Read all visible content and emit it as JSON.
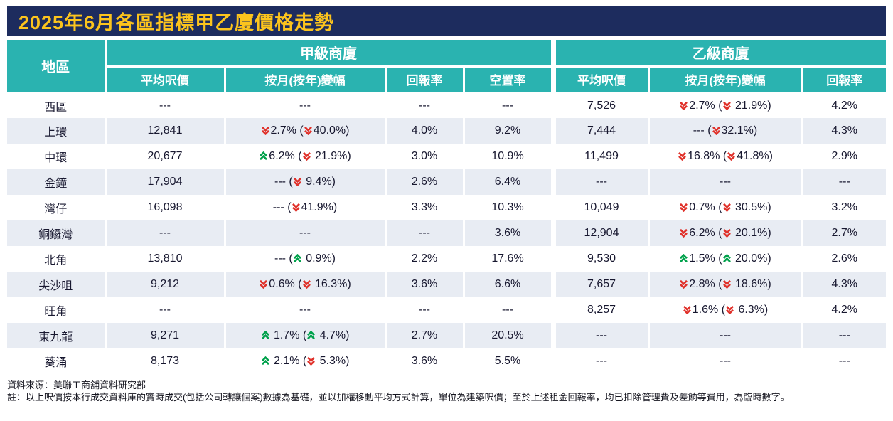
{
  "title": "2025年6月各區指標甲乙廈價格走勢",
  "colors": {
    "banner_bg": "#1D2C5E",
    "title_color": "#FCC41D",
    "teal": "#2AB3B0",
    "stripe": "#E8ECF3",
    "down_red": "#E0312A",
    "up_green": "#00A14B"
  },
  "chart_data": {
    "type": "table",
    "title": "2025年6月各區指標甲乙廈價格走勢",
    "district_header": "地區",
    "groups": [
      {
        "label": "甲級商廈",
        "columns": [
          "平均呎價",
          "按月(按年)變幅",
          "回報率",
          "空置率"
        ]
      },
      {
        "label": "乙級商廈",
        "columns": [
          "平均呎價",
          "按月(按年)變幅",
          "回報率"
        ]
      }
    ],
    "legend": {
      "down_icon": "double-down-arrow-icon",
      "up_icon": "double-up-arrow-icon"
    },
    "rows": [
      {
        "district": "西區",
        "a": {
          "price": "---",
          "change": null,
          "ret": "---",
          "vac": "---"
        },
        "b": {
          "price": "7,526",
          "change": {
            "m": {
              "dir": "down",
              "val": "2.7%"
            },
            "y": {
              "dir": "down",
              "val": " 21.9%"
            }
          },
          "ret": "4.2%"
        }
      },
      {
        "district": "上環",
        "a": {
          "price": "12,841",
          "change": {
            "m": {
              "dir": "down",
              "val": "2.7%"
            },
            "y": {
              "dir": "down",
              "val": "40.0%"
            }
          },
          "ret": "4.0%",
          "vac": "9.2%"
        },
        "b": {
          "price": "7,444",
          "change": {
            "m": {
              "dir": null,
              "val": "---"
            },
            "y": {
              "dir": "down",
              "val": "32.1%"
            }
          },
          "ret": "4.3%"
        }
      },
      {
        "district": "中環",
        "a": {
          "price": "20,677",
          "change": {
            "m": {
              "dir": "up",
              "val": "6.2%"
            },
            "y": {
              "dir": "down",
              "val": " 21.9%"
            }
          },
          "ret": "3.0%",
          "vac": "10.9%"
        },
        "b": {
          "price": "11,499",
          "change": {
            "m": {
              "dir": "down",
              "val": "16.8%"
            },
            "y": {
              "dir": "down",
              "val": "41.8%"
            }
          },
          "ret": "2.9%"
        }
      },
      {
        "district": "金鐘",
        "a": {
          "price": "17,904",
          "change": {
            "m": {
              "dir": null,
              "val": "---"
            },
            "y": {
              "dir": "down",
              "val": " 9.4%"
            }
          },
          "ret": "2.6%",
          "vac": "6.4%"
        },
        "b": {
          "price": "---",
          "change": null,
          "ret": "---"
        }
      },
      {
        "district": "灣仔",
        "a": {
          "price": "16,098",
          "change": {
            "m": {
              "dir": null,
              "val": "---"
            },
            "y": {
              "dir": "down",
              "val": "41.9%"
            }
          },
          "ret": "3.3%",
          "vac": "10.3%"
        },
        "b": {
          "price": "10,049",
          "change": {
            "m": {
              "dir": "down",
              "val": "0.7%"
            },
            "y": {
              "dir": "down",
              "val": " 30.5%"
            }
          },
          "ret": "3.2%"
        }
      },
      {
        "district": "銅鑼灣",
        "a": {
          "price": "---",
          "change": null,
          "ret": "---",
          "vac": "3.6%"
        },
        "b": {
          "price": "12,904",
          "change": {
            "m": {
              "dir": "down",
              "val": "6.2%"
            },
            "y": {
              "dir": "down",
              "val": " 20.1%"
            }
          },
          "ret": "2.7%"
        }
      },
      {
        "district": "北角",
        "a": {
          "price": "13,810",
          "change": {
            "m": {
              "dir": null,
              "val": "---"
            },
            "y": {
              "dir": "up",
              "val": " 0.9%"
            }
          },
          "ret": "2.2%",
          "vac": "17.6%"
        },
        "b": {
          "price": "9,530",
          "change": {
            "m": {
              "dir": "up",
              "val": "1.5%"
            },
            "y": {
              "dir": "up",
              "val": " 20.0%"
            }
          },
          "ret": "2.6%"
        }
      },
      {
        "district": "尖沙咀",
        "a": {
          "price": "9,212",
          "change": {
            "m": {
              "dir": "down",
              "val": "0.6%"
            },
            "y": {
              "dir": "down",
              "val": " 16.3%"
            }
          },
          "ret": "3.6%",
          "vac": "6.6%"
        },
        "b": {
          "price": "7,657",
          "change": {
            "m": {
              "dir": "down",
              "val": "2.8%"
            },
            "y": {
              "dir": "down",
              "val": " 18.6%"
            }
          },
          "ret": "4.3%"
        }
      },
      {
        "district": "旺角",
        "a": {
          "price": "---",
          "change": null,
          "ret": "---",
          "vac": "---"
        },
        "b": {
          "price": "8,257",
          "change": {
            "m": {
              "dir": "down",
              "val": "1.6%"
            },
            "y": {
              "dir": "down",
              "val": " 6.3%"
            }
          },
          "ret": "4.2%"
        }
      },
      {
        "district": "東九龍",
        "a": {
          "price": "9,271",
          "change": {
            "m": {
              "dir": "up",
              "val": " 1.7%"
            },
            "y": {
              "dir": "up",
              "val": " 4.7%"
            }
          },
          "ret": "2.7%",
          "vac": "20.5%"
        },
        "b": {
          "price": "---",
          "change": null,
          "ret": "---"
        }
      },
      {
        "district": "葵涌",
        "a": {
          "price": "8,173",
          "change": {
            "m": {
              "dir": "up",
              "val": " 2.1%"
            },
            "y": {
              "dir": "down",
              "val": " 5.3%"
            }
          },
          "ret": "3.6%",
          "vac": "5.5%"
        },
        "b": {
          "price": "---",
          "change": null,
          "ret": "---"
        }
      }
    ]
  },
  "footer": {
    "source": "資料來源：美聯工商舖資料研究部",
    "note": "註：以上呎價按本行成交資料庫的實時成交(包括公司轉讓個案)數據為基礎，並以加權移動平均方式計算，單位為建築呎價；至於上述租金回報率，均已扣除管理費及差餉等費用，為臨時數字。"
  }
}
